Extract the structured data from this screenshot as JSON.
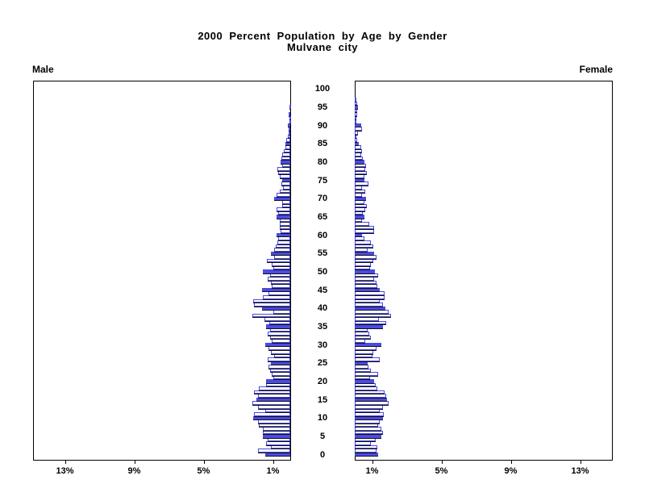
{
  "chart_data": {
    "type": "bar",
    "variant": "population_pyramid",
    "title": "2000 Percent Population by Age by Gender",
    "subtitle": "Mulvane city",
    "left_series_label": "Male",
    "right_series_label": "Female",
    "age_axis": {
      "min": 0,
      "max": 100,
      "tick_interval": 5,
      "tick_labels": [
        "0",
        "5",
        "10",
        "15",
        "20",
        "25",
        "30",
        "35",
        "40",
        "45",
        "50",
        "55",
        "60",
        "65",
        "70",
        "75",
        "80",
        "85",
        "90",
        "95",
        "100"
      ]
    },
    "pct_axis": {
      "unit": "percent of population",
      "tick_values": [
        1,
        5,
        9,
        13
      ],
      "male_tick_labels": [
        "13%",
        "9%",
        "5%",
        "1%"
      ],
      "female_tick_labels": [
        "1%",
        "5%",
        "9%",
        "13%"
      ],
      "max_pct": 14.8
    },
    "highlight": "bars at ages divisible by 5 are filled solid blue; other ages are white with blue outline",
    "series": [
      {
        "name": "Male",
        "ages_0_to_100_pct": [
          1.45,
          1.85,
          1.1,
          1.4,
          1.3,
          1.6,
          1.6,
          1.6,
          1.8,
          1.85,
          2.15,
          2.1,
          1.45,
          1.85,
          2.2,
          1.95,
          1.85,
          2.1,
          1.8,
          1.4,
          1.4,
          1.0,
          1.05,
          1.15,
          1.25,
          1.1,
          1.3,
          0.95,
          1.1,
          1.25,
          1.45,
          1.05,
          1.15,
          1.3,
          1.15,
          1.4,
          1.2,
          1.5,
          2.2,
          1.0,
          1.65,
          2.1,
          2.15,
          1.6,
          1.25,
          1.65,
          1.05,
          1.1,
          1.3,
          1.15,
          1.6,
          1.0,
          1.05,
          1.35,
          0.95,
          1.1,
          0.95,
          0.85,
          0.75,
          0.7,
          0.8,
          0.55,
          0.6,
          0.6,
          0.6,
          0.8,
          0.7,
          0.8,
          0.45,
          0.45,
          0.95,
          0.8,
          0.6,
          0.4,
          0.5,
          0.45,
          0.6,
          0.7,
          0.75,
          0.45,
          0.55,
          0.5,
          0.45,
          0.35,
          0.3,
          0.3,
          0.25,
          0.15,
          0.1,
          0.1,
          0.12,
          0.05,
          0.05,
          0.1,
          0.0,
          0.03,
          0.0,
          0.0,
          0.0,
          0.0,
          0.0
        ]
      },
      {
        "name": "Female",
        "ages_0_to_100_pct": [
          1.35,
          1.25,
          1.3,
          0.93,
          1.2,
          1.55,
          1.63,
          1.55,
          1.35,
          1.45,
          1.63,
          1.67,
          1.45,
          1.63,
          1.95,
          1.85,
          1.8,
          1.7,
          1.3,
          1.2,
          1.1,
          0.9,
          1.35,
          0.95,
          0.8,
          0.75,
          1.45,
          1.0,
          1.05,
          1.25,
          1.55,
          0.6,
          0.95,
          0.85,
          0.75,
          1.63,
          1.8,
          1.4,
          2.1,
          1.95,
          1.75,
          1.65,
          1.45,
          1.7,
          1.7,
          1.45,
          1.3,
          1.25,
          1.1,
          1.35,
          1.15,
          0.9,
          0.95,
          1.05,
          1.27,
          1.1,
          0.75,
          1.05,
          0.95,
          0.55,
          0.43,
          1.1,
          1.1,
          0.85,
          0.4,
          0.55,
          0.47,
          0.6,
          0.7,
          0.55,
          0.65,
          0.43,
          0.6,
          0.43,
          0.78,
          0.55,
          0.55,
          0.7,
          0.6,
          0.65,
          0.55,
          0.45,
          0.35,
          0.4,
          0.35,
          0.23,
          0.15,
          0.1,
          0.18,
          0.4,
          0.35,
          0.05,
          0.08,
          0.12,
          0.15,
          0.18,
          0.15,
          0.05,
          0.0,
          0.0,
          0.0
        ]
      }
    ],
    "colors": {
      "bar_outline": "#4a4ae6",
      "bar_highlight_fill": "#4a4ae6",
      "bar_fill": "#ffffff",
      "bar_shadow": "#111111",
      "frame": "#000000",
      "text": "#000000",
      "background": "#ffffff"
    }
  }
}
